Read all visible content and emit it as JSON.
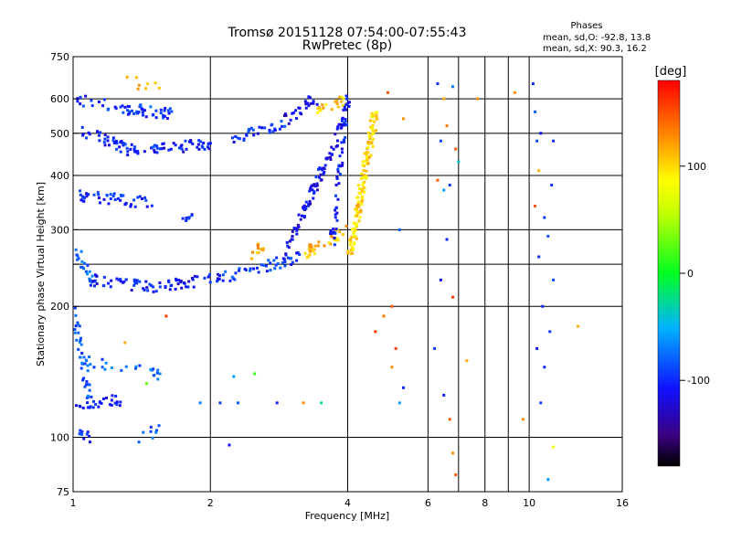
{
  "chart_data": {
    "type": "scatter",
    "title": "Tromsø 20151128 07:54:00-07:55:43",
    "subtitle": "RwPretec (8p)",
    "phase_info": {
      "heading": "Phases",
      "line1": "mean, sd,O: -92.8, 13.8",
      "line2": "mean, sd,X:  90.3, 16.2"
    },
    "xlabel": "Frequency [MHz]",
    "ylabel": "Stationary phase Virtual Height [km]",
    "x_scale": "log",
    "y_scale": "log",
    "xlim": [
      1,
      16
    ],
    "ylim": [
      75,
      750
    ],
    "grid": true,
    "x_ticks": [
      {
        "value": 1,
        "label": "1"
      },
      {
        "value": 2,
        "label": "2"
      },
      {
        "value": 4,
        "label": "4"
      },
      {
        "value": 6,
        "label": "6"
      },
      {
        "value": 8,
        "label": "8"
      },
      {
        "value": 10,
        "label": "10"
      },
      {
        "value": 16,
        "label": "16"
      }
    ],
    "x_grid_extra": [
      7,
      9
    ],
    "y_ticks": [
      {
        "value": 75,
        "label": "75"
      },
      {
        "value": 100,
        "label": "100"
      },
      {
        "value": 200,
        "label": "200"
      },
      {
        "value": 250,
        "label": ""
      },
      {
        "value": 300,
        "label": "300"
      },
      {
        "value": 400,
        "label": "400"
      },
      {
        "value": 500,
        "label": "500"
      },
      {
        "value": 600,
        "label": "600"
      },
      {
        "value": 750,
        "label": "750"
      }
    ],
    "colorbar": {
      "label": "[deg]",
      "range": [
        -180,
        180
      ],
      "ticks": [
        {
          "value": 100,
          "label": "100"
        },
        {
          "value": 0,
          "label": "0"
        },
        {
          "value": -100,
          "label": "-100"
        }
      ]
    },
    "segments": [
      {
        "x": [
          1.01,
          1.45
        ],
        "y": [
          600,
          560
        ],
        "phase": -100,
        "n": 40
      },
      {
        "x": [
          1.45,
          1.65
        ],
        "y": [
          560,
          555
        ],
        "phase": -95,
        "n": 18
      },
      {
        "x": [
          1.6,
          2.0
        ],
        "y": [
          465,
          470
        ],
        "phase": -110,
        "n": 30
      },
      {
        "x": [
          1.05,
          1.35
        ],
        "y": [
          510,
          455
        ],
        "phase": -105,
        "n": 40
      },
      {
        "x": [
          1.35,
          1.6
        ],
        "y": [
          455,
          460
        ],
        "phase": -100,
        "n": 22
      },
      {
        "x": [
          1.02,
          1.5
        ],
        "y": [
          360,
          345
        ],
        "phase": -100,
        "n": 45
      },
      {
        "x": [
          1.02,
          1.1
        ],
        "y": [
          270,
          230
        ],
        "phase": -80,
        "n": 20
      },
      {
        "x": [
          1.1,
          1.5
        ],
        "y": [
          230,
          222
        ],
        "phase": -105,
        "n": 40
      },
      {
        "x": [
          1.5,
          2.1
        ],
        "y": [
          222,
          232
        ],
        "phase": -110,
        "n": 40
      },
      {
        "x": [
          2.1,
          3.2
        ],
        "y": [
          232,
          262
        ],
        "phase": -95,
        "n": 45
      },
      {
        "x": [
          3.2,
          3.95
        ],
        "y": [
          262,
          300
        ],
        "phase": 115,
        "n": 35
      },
      {
        "x": [
          2.2,
          2.9
        ],
        "y": [
          480,
          530
        ],
        "phase": -100,
        "n": 30
      },
      {
        "x": [
          2.9,
          3.4
        ],
        "y": [
          530,
          600
        ],
        "phase": -120,
        "n": 25
      },
      {
        "x": [
          3.4,
          3.95
        ],
        "y": [
          560,
          600
        ],
        "phase": 110,
        "n": 20
      },
      {
        "x": [
          2.95,
          3.95
        ],
        "y": [
          270,
          540
        ],
        "phase": -115,
        "n": 90
      },
      {
        "x": [
          3.7,
          4.0
        ],
        "y": [
          280,
          620
        ],
        "phase": -110,
        "n": 60
      },
      {
        "x": [
          4.05,
          4.6
        ],
        "y": [
          260,
          560
        ],
        "phase": 105,
        "n": 140
      },
      {
        "x": [
          1.0,
          1.1
        ],
        "y": [
          200,
          115
        ],
        "phase": -85,
        "n": 40
      },
      {
        "x": [
          1.0,
          1.3
        ],
        "y": [
          120,
          122
        ],
        "phase": -105,
        "n": 25
      },
      {
        "x": [
          1.05,
          1.55
        ],
        "y": [
          150,
          140
        ],
        "phase": -80,
        "n": 25
      },
      {
        "x": [
          1.0,
          1.1
        ],
        "y": [
          102,
          100
        ],
        "phase": -100,
        "n": 10
      },
      {
        "x": [
          1.4,
          1.55
        ],
        "y": [
          100,
          104
        ],
        "phase": -85,
        "n": 8
      },
      {
        "x": [
          1.75,
          1.8
        ],
        "y": [
          320,
          325
        ],
        "phase": -90,
        "n": 8
      },
      {
        "x": [
          2.45,
          2.6
        ],
        "y": [
          265,
          272
        ],
        "phase": 120,
        "n": 10
      },
      {
        "x": [
          1.3,
          1.55
        ],
        "y": [
          660,
          640
        ],
        "phase": 110,
        "n": 8
      }
    ],
    "points": [
      {
        "x": 6.3,
        "y": 650,
        "phase": -100
      },
      {
        "x": 6.5,
        "y": 600,
        "phase": 120
      },
      {
        "x": 6.8,
        "y": 640,
        "phase": -70
      },
      {
        "x": 6.4,
        "y": 480,
        "phase": -90
      },
      {
        "x": 6.6,
        "y": 520,
        "phase": 140
      },
      {
        "x": 6.9,
        "y": 460,
        "phase": 150
      },
      {
        "x": 6.3,
        "y": 390,
        "phase": 150
      },
      {
        "x": 6.5,
        "y": 370,
        "phase": -60
      },
      {
        "x": 6.7,
        "y": 380,
        "phase": -95
      },
      {
        "x": 6.6,
        "y": 285,
        "phase": -100
      },
      {
        "x": 6.4,
        "y": 230,
        "phase": -110
      },
      {
        "x": 6.8,
        "y": 210,
        "phase": 160
      },
      {
        "x": 6.2,
        "y": 160,
        "phase": -95
      },
      {
        "x": 6.5,
        "y": 125,
        "phase": -105
      },
      {
        "x": 6.7,
        "y": 110,
        "phase": 150
      },
      {
        "x": 6.8,
        "y": 92,
        "phase": 130
      },
      {
        "x": 6.9,
        "y": 82,
        "phase": 150
      },
      {
        "x": 7.3,
        "y": 150,
        "phase": 120
      },
      {
        "x": 10.2,
        "y": 650,
        "phase": -100
      },
      {
        "x": 10.3,
        "y": 560,
        "phase": -80
      },
      {
        "x": 10.6,
        "y": 500,
        "phase": -110
      },
      {
        "x": 10.4,
        "y": 480,
        "phase": -90
      },
      {
        "x": 11.3,
        "y": 480,
        "phase": -100
      },
      {
        "x": 10.5,
        "y": 410,
        "phase": 120
      },
      {
        "x": 11.2,
        "y": 380,
        "phase": -100
      },
      {
        "x": 10.3,
        "y": 340,
        "phase": 150
      },
      {
        "x": 10.8,
        "y": 320,
        "phase": -95
      },
      {
        "x": 11.0,
        "y": 290,
        "phase": -85
      },
      {
        "x": 10.5,
        "y": 260,
        "phase": -100
      },
      {
        "x": 11.3,
        "y": 230,
        "phase": -90
      },
      {
        "x": 10.7,
        "y": 200,
        "phase": -100
      },
      {
        "x": 11.1,
        "y": 175,
        "phase": -95
      },
      {
        "x": 10.4,
        "y": 160,
        "phase": -110
      },
      {
        "x": 10.8,
        "y": 145,
        "phase": -100
      },
      {
        "x": 10.6,
        "y": 120,
        "phase": -90
      },
      {
        "x": 11.3,
        "y": 95,
        "phase": 80
      },
      {
        "x": 11.0,
        "y": 80,
        "phase": -60
      },
      {
        "x": 12.8,
        "y": 180,
        "phase": 120
      },
      {
        "x": 9.7,
        "y": 110,
        "phase": 130
      },
      {
        "x": 9.3,
        "y": 620,
        "phase": 130
      },
      {
        "x": 5.3,
        "y": 540,
        "phase": 130
      },
      {
        "x": 4.9,
        "y": 620,
        "phase": 150
      },
      {
        "x": 5.2,
        "y": 300,
        "phase": -80
      },
      {
        "x": 5.0,
        "y": 200,
        "phase": 150
      },
      {
        "x": 5.1,
        "y": 160,
        "phase": 160
      },
      {
        "x": 5.2,
        "y": 120,
        "phase": -60
      },
      {
        "x": 5.0,
        "y": 145,
        "phase": 130
      },
      {
        "x": 4.6,
        "y": 175,
        "phase": 160
      },
      {
        "x": 4.8,
        "y": 190,
        "phase": 140
      },
      {
        "x": 5.3,
        "y": 130,
        "phase": -100
      },
      {
        "x": 2.25,
        "y": 138,
        "phase": -60
      },
      {
        "x": 2.5,
        "y": 140,
        "phase": 20
      },
      {
        "x": 3.5,
        "y": 120,
        "phase": -30
      },
      {
        "x": 1.9,
        "y": 120,
        "phase": -70
      },
      {
        "x": 2.1,
        "y": 120,
        "phase": -95
      },
      {
        "x": 2.3,
        "y": 120,
        "phase": -80
      },
      {
        "x": 2.8,
        "y": 120,
        "phase": -100
      },
      {
        "x": 3.2,
        "y": 120,
        "phase": 130
      },
      {
        "x": 2.2,
        "y": 96,
        "phase": -110
      },
      {
        "x": 1.6,
        "y": 190,
        "phase": 160
      },
      {
        "x": 1.3,
        "y": 165,
        "phase": 120
      },
      {
        "x": 1.55,
        "y": 140,
        "phase": -70
      },
      {
        "x": 1.45,
        "y": 133,
        "phase": 30
      },
      {
        "x": 7.7,
        "y": 600,
        "phase": 130
      },
      {
        "x": 7.0,
        "y": 430,
        "phase": -40
      }
    ]
  }
}
